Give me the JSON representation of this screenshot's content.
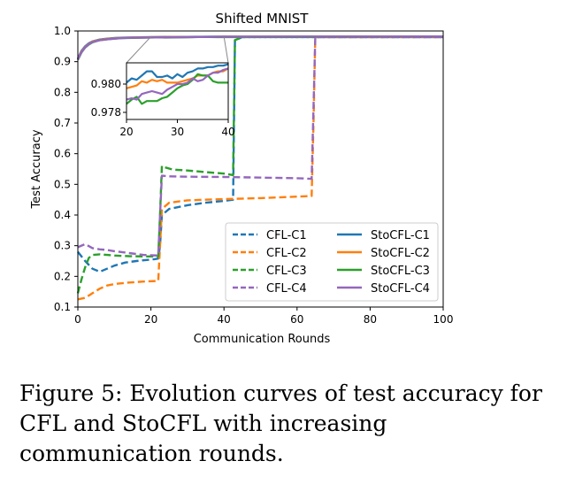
{
  "chart_data": {
    "type": "line",
    "title": "Shifted MNIST",
    "xlabel": "Communication Rounds",
    "ylabel": "Test Accuracy",
    "xlim": [
      0,
      100
    ],
    "ylim": [
      0.1,
      1.0
    ],
    "xticks": [
      "0",
      "20",
      "40",
      "60",
      "80",
      "100"
    ],
    "yticks": [
      "0.1",
      "0.2",
      "0.3",
      "0.4",
      "0.5",
      "0.6",
      "0.7",
      "0.8",
      "0.9",
      "1.0"
    ],
    "grid": false,
    "legend_position": "lower-right",
    "colors": {
      "C1": "#1f77b4",
      "C2": "#ff7f0e",
      "C3": "#2ca02c",
      "C4": "#9467bd"
    },
    "series": [
      {
        "name": "CFL-C1",
        "style": "dashed",
        "color": "#1f77b4",
        "x": [
          0,
          2,
          4,
          6,
          8,
          10,
          13,
          16,
          20,
          21,
          22,
          22.5,
          23,
          25,
          30,
          35,
          40,
          42.5,
          43,
          45,
          50,
          60,
          70,
          80,
          90,
          100
        ],
        "y": [
          0.28,
          0.25,
          0.225,
          0.215,
          0.225,
          0.235,
          0.245,
          0.25,
          0.255,
          0.256,
          0.258,
          0.3,
          0.4,
          0.42,
          0.432,
          0.44,
          0.446,
          0.45,
          0.97,
          0.98,
          0.98,
          0.98,
          0.98,
          0.98,
          0.98,
          0.98
        ]
      },
      {
        "name": "CFL-C2",
        "style": "dashed",
        "color": "#ff7f0e",
        "x": [
          0,
          2,
          4,
          6,
          8,
          10,
          14,
          18,
          22,
          22.5,
          23,
          25,
          30,
          40,
          50,
          60,
          64,
          64.5,
          65,
          70,
          80,
          90,
          100
        ],
        "y": [
          0.125,
          0.13,
          0.145,
          0.16,
          0.17,
          0.175,
          0.18,
          0.183,
          0.185,
          0.3,
          0.42,
          0.44,
          0.448,
          0.452,
          0.455,
          0.46,
          0.462,
          0.7,
          0.98,
          0.98,
          0.98,
          0.98,
          0.98
        ]
      },
      {
        "name": "CFL-C3",
        "style": "dashed",
        "color": "#2ca02c",
        "x": [
          0,
          1,
          2,
          3,
          4,
          6,
          8,
          10,
          14,
          18,
          22,
          22.5,
          23,
          24,
          26,
          30,
          35,
          40,
          42.5,
          43,
          45,
          50,
          60,
          70,
          80,
          90,
          100
        ],
        "y": [
          0.145,
          0.19,
          0.23,
          0.26,
          0.27,
          0.272,
          0.27,
          0.268,
          0.266,
          0.265,
          0.265,
          0.4,
          0.56,
          0.555,
          0.548,
          0.545,
          0.54,
          0.535,
          0.53,
          0.97,
          0.98,
          0.98,
          0.98,
          0.98,
          0.98,
          0.98,
          0.98
        ]
      },
      {
        "name": "CFL-C4",
        "style": "dashed",
        "color": "#9467bd",
        "x": [
          0,
          2,
          4,
          6,
          8,
          10,
          14,
          18,
          22,
          22.5,
          23,
          25,
          30,
          40,
          50,
          60,
          64,
          64.5,
          65,
          70,
          80,
          90,
          100
        ],
        "y": [
          0.295,
          0.305,
          0.292,
          0.288,
          0.286,
          0.282,
          0.276,
          0.27,
          0.268,
          0.4,
          0.528,
          0.526,
          0.525,
          0.524,
          0.522,
          0.52,
          0.518,
          0.75,
          0.98,
          0.98,
          0.98,
          0.98,
          0.98
        ]
      },
      {
        "name": "StoCFL-C1",
        "style": "solid",
        "color": "#1f77b4",
        "x": [
          0,
          1,
          2,
          3,
          4,
          6,
          8,
          10,
          12,
          15,
          18,
          20,
          22,
          24,
          26,
          28,
          30,
          32,
          34,
          36,
          38,
          40,
          50,
          60,
          70,
          80,
          90,
          100
        ],
        "y": [
          0.91,
          0.935,
          0.95,
          0.96,
          0.966,
          0.972,
          0.975,
          0.977,
          0.978,
          0.979,
          0.9796,
          0.9801,
          0.9804,
          0.9807,
          0.9808,
          0.9806,
          0.9807,
          0.9809,
          0.981,
          0.9812,
          0.9813,
          0.9814,
          0.9816,
          0.9818,
          0.9818,
          0.9819,
          0.9819,
          0.982
        ]
      },
      {
        "name": "StoCFL-C2",
        "style": "solid",
        "color": "#ff7f0e",
        "x": [
          0,
          1,
          2,
          3,
          4,
          6,
          8,
          10,
          12,
          15,
          18,
          20,
          22,
          24,
          26,
          28,
          30,
          32,
          34,
          36,
          38,
          40,
          50,
          60,
          70,
          80,
          90,
          100
        ],
        "y": [
          0.908,
          0.933,
          0.948,
          0.958,
          0.965,
          0.971,
          0.974,
          0.976,
          0.9775,
          0.9785,
          0.979,
          0.9794,
          0.9798,
          0.9801,
          0.9803,
          0.9801,
          0.9801,
          0.9803,
          0.9805,
          0.9807,
          0.981,
          0.9812,
          0.9815,
          0.9817,
          0.9817,
          0.9818,
          0.9818,
          0.9818
        ]
      },
      {
        "name": "StoCFL-C3",
        "style": "solid",
        "color": "#2ca02c",
        "x": [
          0,
          1,
          2,
          3,
          4,
          6,
          8,
          10,
          12,
          15,
          18,
          20,
          22,
          24,
          26,
          28,
          30,
          32,
          34,
          36,
          38,
          40,
          50,
          60,
          70,
          80,
          90,
          100
        ],
        "y": [
          0.906,
          0.93,
          0.946,
          0.956,
          0.963,
          0.97,
          0.973,
          0.975,
          0.9765,
          0.9775,
          0.978,
          0.9786,
          0.9791,
          0.9786,
          0.9788,
          0.9791,
          0.9797,
          0.98,
          0.9806,
          0.9805,
          0.98,
          0.98,
          0.9805,
          0.981,
          0.9812,
          0.9813,
          0.9814,
          0.9815
        ]
      },
      {
        "name": "StoCFL-C4",
        "style": "solid",
        "color": "#9467bd",
        "x": [
          0,
          1,
          2,
          3,
          4,
          6,
          8,
          10,
          12,
          15,
          18,
          20,
          22,
          24,
          26,
          28,
          30,
          32,
          34,
          36,
          38,
          40,
          50,
          60,
          70,
          80,
          90,
          100
        ],
        "y": [
          0.907,
          0.931,
          0.947,
          0.957,
          0.964,
          0.97,
          0.973,
          0.975,
          0.9768,
          0.978,
          0.9785,
          0.979,
          0.979,
          0.9793,
          0.9795,
          0.9795,
          0.98,
          0.9803,
          0.9805,
          0.9807,
          0.981,
          0.9812,
          0.9815,
          0.9817,
          0.9817,
          0.9818,
          0.9818,
          0.9818
        ]
      }
    ],
    "inset": {
      "xlim": [
        20,
        40
      ],
      "ylim": [
        0.9775,
        0.9815
      ],
      "xticks": [
        "20",
        "30",
        "40"
      ],
      "yticks": [
        "0.978",
        "0.980"
      ],
      "x_tick_values": [
        20,
        30,
        40
      ],
      "y_tick_values": [
        0.978,
        0.98
      ],
      "series": [
        {
          "name": "StoCFL-C1",
          "color": "#1f77b4",
          "x": [
            20,
            21,
            22,
            23,
            24,
            25,
            26,
            27,
            28,
            29,
            30,
            31,
            32,
            33,
            34,
            35,
            36,
            37,
            38,
            39,
            40
          ],
          "y": [
            0.9801,
            0.9804,
            0.9803,
            0.9806,
            0.9809,
            0.9809,
            0.9805,
            0.9805,
            0.9806,
            0.9804,
            0.9807,
            0.9805,
            0.9808,
            0.9809,
            0.9811,
            0.9811,
            0.9812,
            0.9812,
            0.9813,
            0.9813,
            0.9814
          ]
        },
        {
          "name": "StoCFL-C2",
          "color": "#ff7f0e",
          "x": [
            20,
            21,
            22,
            23,
            24,
            25,
            26,
            27,
            28,
            29,
            30,
            31,
            32,
            33,
            34,
            35,
            36,
            37,
            38,
            39,
            40
          ],
          "y": [
            0.9797,
            0.9798,
            0.9799,
            0.9802,
            0.9801,
            0.9803,
            0.9802,
            0.9803,
            0.9801,
            0.9801,
            0.9801,
            0.9802,
            0.9803,
            0.9804,
            0.9806,
            0.9806,
            0.9806,
            0.9808,
            0.9809,
            0.9809,
            0.9811
          ]
        },
        {
          "name": "StoCFL-C3",
          "color": "#2ca02c",
          "x": [
            20,
            21,
            22,
            23,
            24,
            25,
            26,
            27,
            28,
            29,
            30,
            31,
            32,
            33,
            34,
            35,
            36,
            37,
            38,
            39,
            40
          ],
          "y": [
            0.9786,
            0.9789,
            0.9791,
            0.9786,
            0.9788,
            0.9788,
            0.9788,
            0.979,
            0.9791,
            0.9794,
            0.9797,
            0.9799,
            0.98,
            0.9803,
            0.9807,
            0.9806,
            0.9806,
            0.9802,
            0.9801,
            0.9801,
            0.9801
          ]
        },
        {
          "name": "StoCFL-C4",
          "color": "#9467bd",
          "x": [
            20,
            21,
            22,
            23,
            24,
            25,
            26,
            27,
            28,
            29,
            30,
            31,
            32,
            33,
            34,
            35,
            36,
            37,
            38,
            39,
            40
          ],
          "y": [
            0.9789,
            0.979,
            0.9789,
            0.9793,
            0.9794,
            0.9795,
            0.9794,
            0.9793,
            0.9796,
            0.9798,
            0.98,
            0.98,
            0.9801,
            0.9804,
            0.9802,
            0.9803,
            0.9806,
            0.9808,
            0.9808,
            0.981,
            0.9811
          ]
        }
      ]
    },
    "legend": [
      {
        "label": "CFL-C1",
        "style": "dashed",
        "color": "#1f77b4"
      },
      {
        "label": "CFL-C2",
        "style": "dashed",
        "color": "#ff7f0e"
      },
      {
        "label": "CFL-C3",
        "style": "dashed",
        "color": "#2ca02c"
      },
      {
        "label": "CFL-C4",
        "style": "dashed",
        "color": "#9467bd"
      },
      {
        "label": "StoCFL-C1",
        "style": "solid",
        "color": "#1f77b4"
      },
      {
        "label": "StoCFL-C2",
        "style": "solid",
        "color": "#ff7f0e"
      },
      {
        "label": "StoCFL-C3",
        "style": "solid",
        "color": "#2ca02c"
      },
      {
        "label": "StoCFL-C4",
        "style": "solid",
        "color": "#9467bd"
      }
    ]
  },
  "caption": "Figure 5: Evolution curves of test accuracy for CFL and StoCFL with increasing communication rounds."
}
